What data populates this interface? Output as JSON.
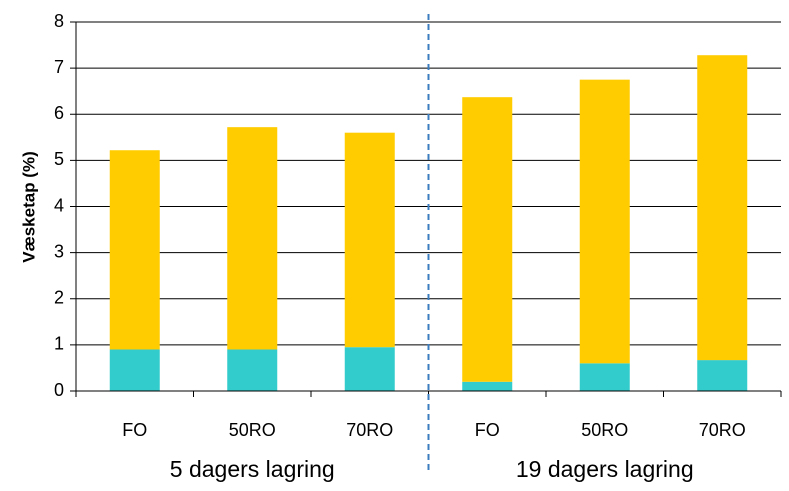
{
  "chart_data": {
    "type": "bar",
    "stacked": true,
    "title": "",
    "xlabel": "",
    "ylabel": "Væsketap (%)",
    "ylim": [
      0,
      8
    ],
    "yticks": [
      "0",
      "1",
      "2",
      "3",
      "4",
      "5",
      "6",
      "7",
      "8"
    ],
    "grid": true,
    "categories": [
      "FO",
      "50RO",
      "70RO",
      "FO",
      "50RO",
      "70RO"
    ],
    "groups": [
      {
        "label": "5 dagers lagring",
        "span": [
          0,
          2
        ]
      },
      {
        "label": "19 dagers lagring",
        "span": [
          3,
          5
        ]
      }
    ],
    "group_separator": "dashed vertical line between groups",
    "series": [
      {
        "color": "#33CCCC",
        "values": [
          0.9,
          0.9,
          0.95,
          0.2,
          0.6,
          0.67
        ]
      },
      {
        "color": "#FFCC00",
        "values": [
          4.32,
          4.82,
          4.65,
          6.17,
          6.15,
          6.61
        ]
      }
    ],
    "totals": [
      5.22,
      5.72,
      5.6,
      6.37,
      6.75,
      7.28
    ],
    "colors": {
      "grid": "#000000",
      "separator": "#3C7DC0"
    }
  }
}
